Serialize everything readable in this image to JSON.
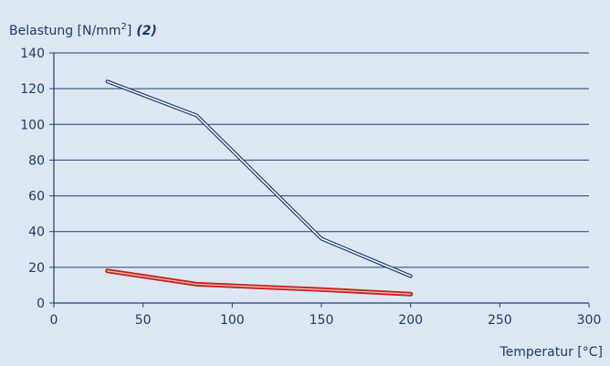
{
  "chart_data": {
    "type": "line",
    "ylabel": "Belastung [N/mm",
    "ylabel_superscript": "2",
    "ylabel_suffix": "]",
    "ylabel_qualifier": "(2)",
    "xlabel": "Temperatur [°C]",
    "xlim": [
      0,
      300
    ],
    "ylim": [
      0,
      140
    ],
    "x_ticks": [
      0,
      50,
      100,
      150,
      200,
      250,
      300
    ],
    "y_ticks": [
      0,
      20,
      40,
      60,
      80,
      100,
      120,
      140
    ],
    "grid": true,
    "series": [
      {
        "color": "#1f3f7a",
        "style": "double-line",
        "points": [
          {
            "x": 30,
            "y": 124
          },
          {
            "x": 80,
            "y": 105
          },
          {
            "x": 150,
            "y": 36
          },
          {
            "x": 200,
            "y": 15
          }
        ]
      },
      {
        "color": "#c3241f",
        "style": "double-line",
        "points": [
          {
            "x": 30,
            "y": 18
          },
          {
            "x": 80,
            "y": 10.5
          },
          {
            "x": 150,
            "y": 7.5
          },
          {
            "x": 200,
            "y": 5
          }
        ]
      }
    ],
    "colors": {
      "background": "#dde7f3",
      "grid": "#1f3f7a",
      "axis": "#1f3f7a",
      "text": "#1a3b6e"
    }
  }
}
